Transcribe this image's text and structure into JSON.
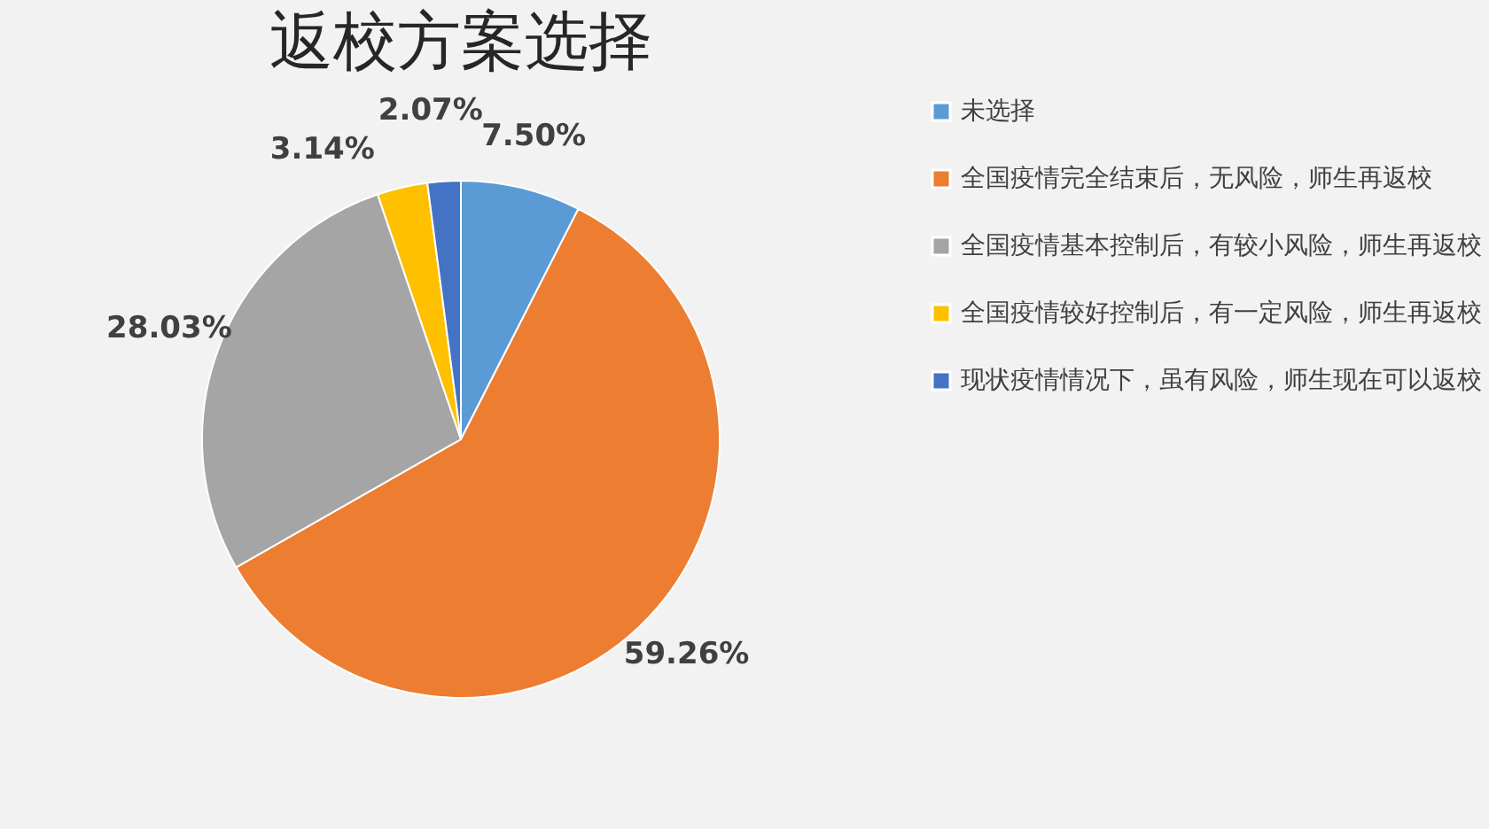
{
  "chart_data": {
    "type": "pie",
    "title": "返校方案选择",
    "categories": [
      "未选择",
      "全国疫情完全结束后，无风险，师生再返校",
      "全国疫情基本控制后，有较小风险，师生再返校",
      "全国疫情较好控制后，有一定风险，师生再返校",
      "现状疫情情况下，虽有风险，师生现在可以返校"
    ],
    "values": [
      7.5,
      59.26,
      28.03,
      3.14,
      2.07
    ],
    "value_labels": [
      "7.50%",
      "59.26%",
      "28.03%",
      "3.14%",
      "2.07%"
    ],
    "colors": [
      "#5b9bd5",
      "#ed7d31",
      "#a5a5a5",
      "#ffc000",
      "#4472c4"
    ],
    "legend": "right"
  }
}
